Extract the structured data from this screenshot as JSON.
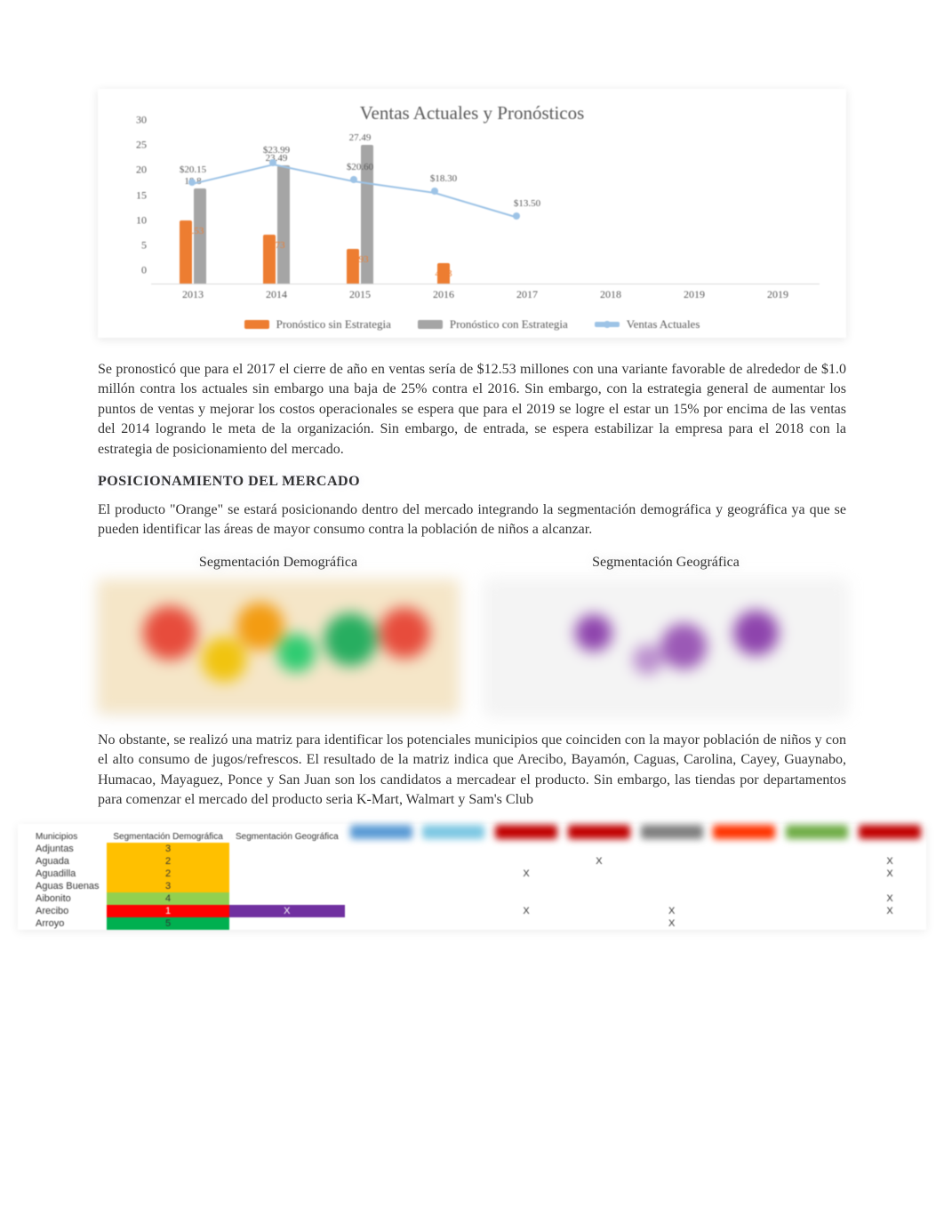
{
  "chart": {
    "title": "Ventas Actuales y Pronósticos",
    "y": {
      "min": 0,
      "max": 30,
      "step": 5,
      "ticks": [
        "0",
        "5",
        "10",
        "15",
        "20",
        "25",
        "30"
      ]
    },
    "x_labels": [
      "2013",
      "2014",
      "2015",
      "2016",
      "2017",
      "2018",
      "2019",
      "2019"
    ],
    "colors": {
      "sin_estrategia": "#ed7d31",
      "con_estrategia": "#a5a5a5",
      "ventas_actuales": "#9dc3e6",
      "grid": "#d9d9d9",
      "text": "#595959"
    },
    "series": {
      "sin_estrategia": {
        "label": "Pronóstico sin Estrategia",
        "values": [
          12.53,
          9.73,
          6.93,
          4.13,
          null,
          null,
          null,
          null
        ],
        "data_labels": [
          "12.53",
          "9.73",
          "6.93",
          "4.13",
          "",
          "",
          "",
          ""
        ]
      },
      "con_estrategia": {
        "label": "Pronóstico con Estrategia",
        "values": [
          18.8,
          23.49,
          27.49,
          null,
          null,
          null,
          null,
          null
        ],
        "data_labels": [
          "18.8",
          "23.49",
          "27.49",
          "",
          "",
          "",
          "",
          ""
        ]
      },
      "ventas_actuales": {
        "label": "Ventas Actuales",
        "values": [
          20.15,
          23.99,
          20.6,
          18.3,
          13.5,
          null,
          null,
          null
        ],
        "data_labels": [
          "$20.15",
          "$23.99",
          "$20.60",
          "$18.30",
          "$13.50",
          "",
          "",
          ""
        ]
      }
    }
  },
  "paragraph1": "Se pronosticó que para el 2017 el cierre de año en ventas sería de $12.53 millones con una variante favorable de alrededor de $1.0 millón contra los actuales sin embargo una baja de 25% contra el 2016.  Sin embargo, con la estrategia general de aumentar los puntos de ventas y mejorar los costos operacionales se espera que para el 2019 se logre el estar un 15% por encima de las ventas del 2014 logrando le meta de la organización.  Sin embargo, de entrada, se espera estabilizar la empresa para el 2018 con la estrategia de posicionamiento del mercado.",
  "heading1": "POSICIONAMIENTO DEL MERCADO",
  "paragraph2": "El producto \"Orange\" se estará posicionando dentro del mercado integrando la segmentación demográfica y geográfica ya que se pueden identificar las áreas de mayor consumo contra la población de niños a alcanzar.",
  "maps": {
    "demo_title": "Segmentación Demográfica",
    "geo_title": "Segmentación Geográfica"
  },
  "paragraph3": "No obstante, se realizó una matriz para identificar los potenciales municipios que coinciden con la mayor población de niños y con el alto consumo de jugos/refrescos. El resultado de la matriz indica que Arecibo, Bayamón, Caguas, Carolina, Cayey, Guaynabo, Humacao, Mayaguez, Ponce y San Juan son los candidatos a mercadear el producto.  Sin embargo, las tiendas por departamentos para comenzar el mercado del producto seria K-Mart, Walmart y Sam's Club",
  "matrix": {
    "headers": [
      "Municipios",
      "Segmentación Demográfica",
      "Segmentación Geográfica",
      "",
      "",
      "",
      "",
      "",
      "",
      "",
      ""
    ],
    "logo_colors": [
      "#5b9bd5",
      "#7ec8e3",
      "#c00000",
      "#c00000",
      "#7f7f7f",
      "#ff3300",
      "#70ad47",
      "#c00000"
    ],
    "rows": [
      {
        "name": "Adjuntas",
        "demo": "3",
        "demo_color": "#ffc000",
        "geo": "",
        "marks": [
          "",
          "",
          "",
          "",
          "",
          "",
          "",
          ""
        ]
      },
      {
        "name": "Aguada",
        "demo": "2",
        "demo_color": "#ffc000",
        "geo": "",
        "marks": [
          "",
          "",
          "",
          "X",
          "",
          "",
          "",
          "X"
        ]
      },
      {
        "name": "Aguadilla",
        "demo": "2",
        "demo_color": "#ffc000",
        "geo": "",
        "marks": [
          "",
          "",
          "X",
          "",
          "",
          "",
          "",
          "X"
        ]
      },
      {
        "name": "Aguas Buenas",
        "demo": "3",
        "demo_color": "#ffc000",
        "geo": "",
        "marks": [
          "",
          "",
          "",
          "",
          "",
          "",
          "",
          ""
        ]
      },
      {
        "name": "Aibonito",
        "demo": "4",
        "demo_color": "#92d050",
        "geo": "",
        "marks": [
          "",
          "",
          "",
          "",
          "",
          "",
          "",
          "X"
        ]
      },
      {
        "name": "Arecibo",
        "demo": "1",
        "demo_color": "#ff0000",
        "geo": "X",
        "geo_color": "#7030a0",
        "marks": [
          "",
          "",
          "X",
          "",
          "X",
          "",
          "",
          "X"
        ]
      },
      {
        "name": "Arroyo",
        "demo": "5",
        "demo_color": "#00b050",
        "geo": "",
        "marks": [
          "",
          "",
          "",
          "",
          "X",
          "",
          "",
          ""
        ]
      }
    ]
  }
}
